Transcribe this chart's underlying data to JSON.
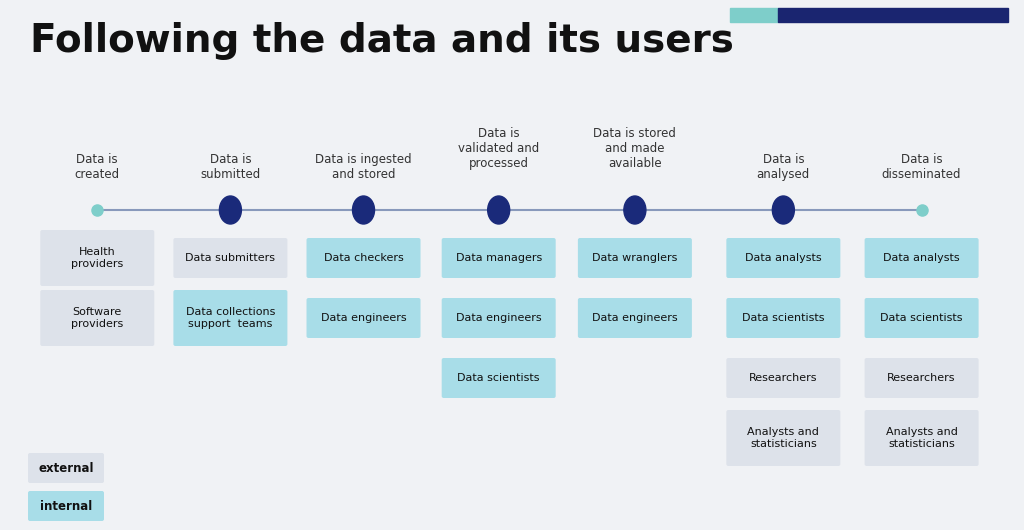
{
  "title": "Following the data and its users",
  "background_color": "#f0f2f5",
  "title_color": "#111111",
  "timeline_color": "#8899bb",
  "dot_color_dark": "#1a2a7a",
  "dot_color_light": "#7ececa",
  "steps": [
    {
      "label": "Data is\ncreated",
      "xf": 0.095
    },
    {
      "label": "Data is\nsubmitted",
      "xf": 0.225
    },
    {
      "label": "Data is ingested\nand stored",
      "xf": 0.355
    },
    {
      "label": "Data is\nvalidated and\nprocessed",
      "xf": 0.487
    },
    {
      "label": "Data is stored\nand made\navailable",
      "xf": 0.62
    },
    {
      "label": "Data is\nanalysed",
      "xf": 0.765
    },
    {
      "label": "Data is\ndisseminated",
      "xf": 0.9
    }
  ],
  "boxes": [
    {
      "text": "Health\nproviders",
      "col": 0,
      "row": 0,
      "internal": false
    },
    {
      "text": "Software\nproviders",
      "col": 0,
      "row": 1,
      "internal": false
    },
    {
      "text": "Data submitters",
      "col": 1,
      "row": 0,
      "internal": false
    },
    {
      "text": "Data collections\nsupport  teams",
      "col": 1,
      "row": 1,
      "internal": true
    },
    {
      "text": "Data checkers",
      "col": 2,
      "row": 0,
      "internal": true
    },
    {
      "text": "Data engineers",
      "col": 2,
      "row": 1,
      "internal": true
    },
    {
      "text": "Data managers",
      "col": 3,
      "row": 0,
      "internal": true
    },
    {
      "text": "Data engineers",
      "col": 3,
      "row": 1,
      "internal": true
    },
    {
      "text": "Data scientists",
      "col": 3,
      "row": 2,
      "internal": true
    },
    {
      "text": "Data wranglers",
      "col": 4,
      "row": 0,
      "internal": true
    },
    {
      "text": "Data engineers",
      "col": 4,
      "row": 1,
      "internal": true
    },
    {
      "text": "Data analysts",
      "col": 5,
      "row": 0,
      "internal": true
    },
    {
      "text": "Data scientists",
      "col": 5,
      "row": 1,
      "internal": true
    },
    {
      "text": "Researchers",
      "col": 5,
      "row": 2,
      "internal": false
    },
    {
      "text": "Analysts and\nstatisticians",
      "col": 5,
      "row": 3,
      "internal": false
    },
    {
      "text": "Data analysts",
      "col": 6,
      "row": 0,
      "internal": true
    },
    {
      "text": "Data scientists",
      "col": 6,
      "row": 1,
      "internal": true
    },
    {
      "text": "Researchers",
      "col": 6,
      "row": 2,
      "internal": false
    },
    {
      "text": "Analysts and\nstatisticians",
      "col": 6,
      "row": 3,
      "internal": false
    }
  ],
  "col_xf": [
    0.095,
    0.225,
    0.355,
    0.487,
    0.62,
    0.765,
    0.9
  ],
  "color_internal": "#a8dde8",
  "color_external": "#dde2ea",
  "legend_external_label": "external",
  "legend_internal_label": "internal"
}
